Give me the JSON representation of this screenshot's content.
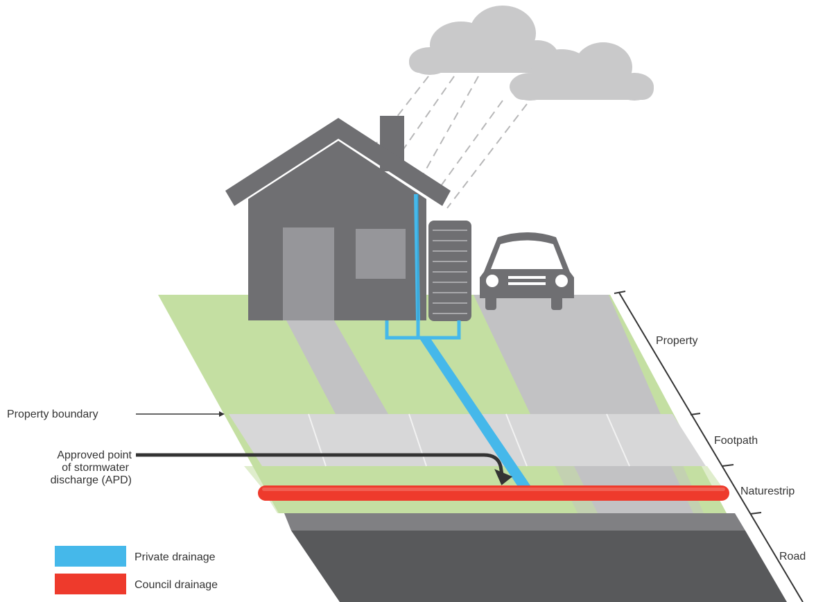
{
  "labels": {
    "property": "Property",
    "footpath": "Footpath",
    "naturestrip": "Naturestrip",
    "road": "Road",
    "property_boundary": "Property boundary",
    "apd_line1": "Approved point",
    "apd_line2": "of stormwater",
    "apd_line3": "discharge (APD)"
  },
  "legend": {
    "items": [
      {
        "label": "Private drainage",
        "color": "#45b8ea"
      },
      {
        "label": "Council drainage",
        "color": "#ee3a2c"
      }
    ]
  },
  "colors": {
    "grass": "#c4dfa2",
    "house": "#6f6f72",
    "paving": "#c2c2c4",
    "footpath": "#d7d7d8",
    "road": "#58595b",
    "cloud": "#c9c9ca",
    "private_drainage": "#45b8ea",
    "council_drainage": "#ee3a2c"
  },
  "icons": [
    "cloud-icon",
    "rain-icon",
    "house-icon",
    "rainwater-tank-icon",
    "car-icon",
    "arrow-icon"
  ]
}
